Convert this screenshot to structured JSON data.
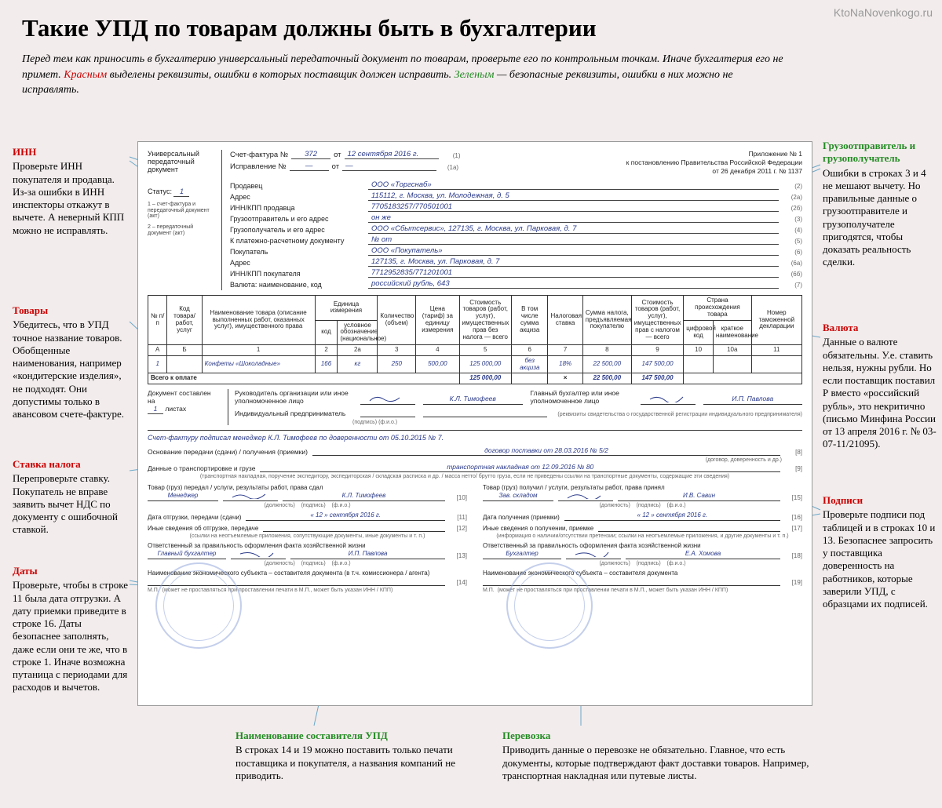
{
  "watermark": "KtoNaNovenkogo.ru",
  "title": "Такие УПД по товарам должны быть в бухгалтерии",
  "intro_plain1": "Перед тем как приносить в бухгалтерию универсальный передаточный документ по товарам, проверьте его по контрольным точкам. Иначе бухгалтерия его не примет. ",
  "intro_red": "Красным",
  "intro_plain2": " выделены реквизиты, ошибки в которых поставщик должен исправить. ",
  "intro_green": "Зеленым",
  "intro_plain3": " — безопасные реквизиты, ошибки в них можно не исправлять.",
  "doc": {
    "upd": "Универсальный передаточный документ",
    "status_lbl": "Статус:",
    "status_val": "1",
    "status_note1": "1 – счет-фактура и передаточный документ (акт)",
    "status_note2": "2 – передаточный документ (акт)",
    "sf_lbl": "Счет-фактура №",
    "sf_no": "372",
    "sf_from": "от",
    "sf_date": "12 сентября 2016 г.",
    "sf_n1": "(1)",
    "fix_lbl": "Исправление №",
    "fix_no": "—",
    "fix_from": "от",
    "fix_date": "—",
    "fix_n": "(1а)",
    "appx1": "Приложение № 1",
    "appx2": "к постановлению Правительства Российской Федерации",
    "appx3": "от 26 декабря 2011 г. № 1137",
    "fields": [
      {
        "k": "Продавец",
        "v": "ООО «Торгснаб»",
        "n": "(2)"
      },
      {
        "k": "Адрес",
        "v": "115112, г. Москва, ул. Молодежная, д. 5",
        "n": "(2а)"
      },
      {
        "k": "ИНН/КПП продавца",
        "v": "7705183257/770501001",
        "n": "(2б)"
      },
      {
        "k": "Грузоотправитель и его адрес",
        "v": "он же",
        "n": "(3)"
      },
      {
        "k": "Грузополучатель и его адрес",
        "v": "ООО «Сбытсервис», 127135, г. Москва, ул. Парковая, д. 7",
        "n": "(4)"
      },
      {
        "k": "К платежно-расчетному документу",
        "v": "№              от",
        "n": "(5)"
      },
      {
        "k": "Покупатель",
        "v": "ООО «Покупатель»",
        "n": "(6)"
      },
      {
        "k": "Адрес",
        "v": "127135, г. Москва, ул. Парковая, д. 7",
        "n": "(6а)"
      },
      {
        "k": "ИНН/КПП покупателя",
        "v": "7712952835/771201001",
        "n": "(6б)"
      },
      {
        "k": "Валюта: наименование, код",
        "v": "российский рубль, 643",
        "n": "(7)"
      }
    ],
    "thead": {
      "c1": "№ п/п",
      "c2": "Код товара/ работ, услуг",
      "c3": "Наименование товара (описание выполненных работ, оказанных услуг), имущественного права",
      "c4": "Единица измерения",
      "c4a": "код",
      "c4b": "условное обозначение (национальное)",
      "c5": "Количество (объем)",
      "c6": "Цена (тариф) за единицу измерения",
      "c7": "Стоимость товаров (работ, услуг), имущественных прав без налога — всего",
      "c8": "В том числе сумма акциза",
      "c9": "Налоговая ставка",
      "c10": "Сумма налога, предъявляемая покупателю",
      "c11": "Стоимость товаров (работ, услуг), имущественных прав с налогом — всего",
      "c12": "Страна происхождения товара",
      "c12a": "цифровой код",
      "c12b": "краткое наименование",
      "c13": "Номер таможенной декларации"
    },
    "row2": [
      "А",
      "Б",
      "1",
      "2",
      "2а",
      "3",
      "4",
      "5",
      "6",
      "7",
      "8",
      "9",
      "10",
      "10а",
      "11"
    ],
    "data": {
      "n": "1",
      "name": "Конфеты «Шоколадные»",
      "code": "166",
      "unit": "кг",
      "qty": "250",
      "price": "500,00",
      "cost": "125 000,00",
      "akz": "без акциза",
      "rate": "18%",
      "tax": "22 500,00",
      "total": "147 500,00"
    },
    "total_lbl": "Всего к оплате",
    "total": {
      "cost": "125 000,00",
      "x": "×",
      "tax": "22 500,00",
      "total": "147 500,00"
    },
    "docpages_lbl": "Документ составлен на",
    "docpages_val": "1",
    "docpages_suf": "листах",
    "sign": {
      "lead_lbl": "Руководитель организации или иное уполномоченное лицо",
      "lead_name": "К.Л. Тимофеев",
      "acc_lbl": "Главный бухгалтер или иное уполномоченное лицо",
      "acc_name": "И.П. Павлова",
      "ip_lbl": "Индивидуальный предприниматель",
      "caps": "(подпись)     (ф.и.о.)",
      "reg": "(реквизиты свидетельства о государственной регистрации индивидуального предпринимателя)",
      "blue_note": "Счет-фактуру подписал менеджер К.Л. Тимофеев по доверенности от 05.10.2015 № 7."
    },
    "lines": {
      "l8k": "Основание передачи (сдачи) / получения (приемки)",
      "l8v": "договор поставки от 28.03.2016 № 5/2",
      "l8c": "(договор, доверенность и др.)",
      "l8n": "[8]",
      "l9k": "Данные о транспортировке и грузе",
      "l9v": "транспортная накладная от 12.09.2016 № 80",
      "l9c": "(транспортная накладная, поручение экспедитору, экспедиторская / складская расписка и др. / масса нетто/ брутто груза, если не приведены ссылки на транспортные документы, содержащие эти сведения)",
      "l9n": "[9]"
    },
    "left": {
      "h": "Товар (груз) передал / услуги, результаты работ, права сдал",
      "pos": "Менеджер",
      "name": "К.Л. Тимофеев",
      "n10": "[10]",
      "date_lbl": "Дата отгрузки, передачи (сдачи)",
      "date": "« 12 »   сентября   2016   г.",
      "n11": "[11]",
      "other_lbl": "Иные сведения об отгрузке, передаче",
      "n12": "[12]",
      "other_cap": "(ссылки на неотъемлемые приложения, сопутствующие документы, иные документы и т. п.)",
      "resp_lbl": "Ответственный за правильность оформления факта хозяйственной жизни",
      "resp_pos": "Главный бухгалтер",
      "resp_name": "И.П. Павлова",
      "n13": "[13]",
      "org_lbl": "Наименование экономического субъекта – составителя документа (в т.ч. комиссионера / агента)",
      "n14": "[14]",
      "mp": "М.П.",
      "mp_cap": "(может не проставляться при проставлении печати в М.П., может быть указан ИНН / КПП)"
    },
    "right": {
      "h": "Товар (груз) получил / услуги, результаты работ, права принял",
      "pos": "Зав. складом",
      "name": "И.В. Савин",
      "n15": "[15]",
      "date_lbl": "Дата получения (приемки)",
      "date": "« 12 »   сентября   2016   г.",
      "n16": "[16]",
      "other_lbl": "Иные сведения о получении, приемке",
      "n17": "[17]",
      "other_cap": "(информация о наличии/отсутствии претензии; ссылки на неотъемлемые приложения, и другие документы и т. п.)",
      "resp_lbl": "Ответственный за правильность оформления факта хозяйственной жизни",
      "resp_pos": "Бухгалтер",
      "resp_name": "Е.А. Хомова",
      "n18": "[18]",
      "org_lbl": "Наименование экономического субъекта – составителя документа",
      "n19": "[19]",
      "mp": "М.П.",
      "mp_cap": "(может не проставляться при проставлении печати в М.П., может быть указан ИНН / КПП)"
    }
  },
  "ann": {
    "inn": {
      "h": "ИНН",
      "t": "Проверьте ИНН покупателя и продавца. Из-за ошибки в ИНН инспекторы откажут в вычете. А неверный КПП можно не исправлять."
    },
    "goods": {
      "h": "Товары",
      "t": "Убедитесь, что в УПД точное название товаров. Обобщенные наименования, например «кондитерские изделия», не подходят. Они допустимы только в авансовом счете-фактуре."
    },
    "rate": {
      "h": "Ставка налога",
      "t": "Перепроверьте ставку. Покупатель не вправе заявить вычет НДС по документу с ошибочной ставкой."
    },
    "dates": {
      "h": "Даты",
      "t": "Проверьте, чтобы в строке 11 была дата отгрузки. А дату приемки приведите в строке 16. Даты безопаснее заполнять, даже если они те же, что в строке 1. Иначе возможна путаница с периодами для расходов и вычетов."
    },
    "ship": {
      "h": "Грузоотправитель и грузополучатель",
      "t": "Ошибки в строках 3 и 4 не мешают вычету. Но правильные данные о грузоотправителе и грузополучателе пригодятся, чтобы доказать реальность сделки."
    },
    "cur": {
      "h": "Валюта",
      "t": "Данные о валюте обязательны. У.е. ставить нельзя, нужны рубли. Но если поставщик поставил Р вместо «российский рубль», это некритично (письмо Минфина России от 13 апреля 2016 г. № 03-07-11/21095)."
    },
    "sign": {
      "h": "Подписи",
      "t": "Проверьте подписи под таблицей и в строках 10 и 13. Безопаснее запросить у поставщика доверенность на работников, которые заверили УПД, с образцами их подписей."
    },
    "comp": {
      "h": "Наименование составителя УПД",
      "t": "В строках 14 и 19 можно поставить только печати поставщика и покупателя, а названия компаний не приводить."
    },
    "trans": {
      "h": "Перевозка",
      "t": "Приводить данные о перевозке не обязательно. Главное, что есть документы, которые подтверждают факт доставки товаров. Например, транспортная накладная или путевые листы."
    }
  }
}
